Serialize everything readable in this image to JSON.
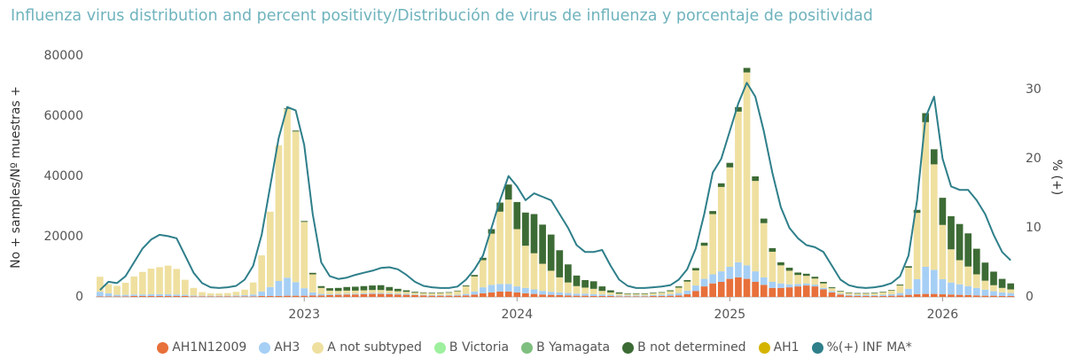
{
  "chart_data": {
    "type": "bar",
    "stacked": true,
    "title": "Influenza virus distribution and percent positivity/Distribución de virus de influenza y porcentaje de positividad",
    "y_label": "No + samples/Nº muestras +",
    "y2_label": "% (+)",
    "x": [
      2022.04,
      2022.08,
      2022.12,
      2022.16,
      2022.2,
      2022.24,
      2022.28,
      2022.32,
      2022.36,
      2022.4,
      2022.44,
      2022.48,
      2022.52,
      2022.56,
      2022.6,
      2022.64,
      2022.68,
      2022.72,
      2022.76,
      2022.8,
      2022.84,
      2022.88,
      2022.92,
      2022.96,
      2023.0,
      2023.04,
      2023.08,
      2023.12,
      2023.16,
      2023.2,
      2023.24,
      2023.28,
      2023.32,
      2023.36,
      2023.4,
      2023.44,
      2023.48,
      2023.52,
      2023.56,
      2023.6,
      2023.64,
      2023.68,
      2023.72,
      2023.76,
      2023.8,
      2023.84,
      2023.88,
      2023.92,
      2023.96,
      2024.0,
      2024.04,
      2024.08,
      2024.12,
      2024.16,
      2024.2,
      2024.24,
      2024.28,
      2024.32,
      2024.36,
      2024.4,
      2024.44,
      2024.48,
      2024.52,
      2024.56,
      2024.6,
      2024.64,
      2024.68,
      2024.72,
      2024.76,
      2024.8,
      2024.84,
      2024.88,
      2024.92,
      2024.96,
      2025.0,
      2025.04,
      2025.08,
      2025.12,
      2025.16,
      2025.2,
      2025.24,
      2025.28,
      2025.32,
      2025.36,
      2025.4,
      2025.44,
      2025.48,
      2025.52,
      2025.56,
      2025.6,
      2025.64,
      2025.68,
      2025.72,
      2025.76,
      2025.8,
      2025.84,
      2025.88,
      2025.92,
      2025.96,
      2026.0,
      2026.04,
      2026.08,
      2026.12,
      2026.16,
      2026.2,
      2026.24,
      2026.28,
      2026.32
    ],
    "xlim": [
      2022.02,
      2026.34
    ],
    "xticks": [
      2023,
      2024,
      2025,
      2026
    ],
    "ylim": [
      0,
      80000
    ],
    "yticks": [
      0,
      20000,
      40000,
      60000,
      80000
    ],
    "y2lim": [
      0,
      34.9
    ],
    "y2ticks": [
      0,
      10,
      20,
      30
    ],
    "grid": false,
    "legend": "bottom",
    "series": [
      {
        "name": "AH1N12009",
        "color": "#e8703a",
        "values": [
          200,
          200,
          200,
          200,
          300,
          300,
          300,
          300,
          300,
          300,
          300,
          200,
          200,
          200,
          200,
          200,
          200,
          200,
          200,
          300,
          300,
          300,
          400,
          400,
          400,
          500,
          500,
          600,
          700,
          800,
          800,
          900,
          1000,
          1000,
          900,
          800,
          700,
          600,
          500,
          400,
          400,
          400,
          400,
          500,
          800,
          1200,
          1500,
          1800,
          1800,
          1500,
          1200,
          1000,
          800,
          700,
          600,
          500,
          400,
          400,
          300,
          300,
          300,
          200,
          200,
          200,
          200,
          300,
          300,
          400,
          500,
          900,
          2000,
          3500,
          4500,
          5000,
          6000,
          6500,
          6000,
          5000,
          4000,
          3000,
          3000,
          3200,
          3500,
          3800,
          3500,
          2500,
          1500,
          800,
          400,
          300,
          300,
          300,
          300,
          400,
          500,
          700,
          900,
          1000,
          1000,
          900,
          800,
          700,
          600,
          500,
          400,
          400,
          300,
          300
        ]
      },
      {
        "name": "AH3",
        "color": "#a6cff5",
        "values": [
          1500,
          1000,
          500,
          500,
          500,
          500,
          600,
          600,
          600,
          500,
          400,
          300,
          200,
          200,
          200,
          200,
          300,
          400,
          600,
          1500,
          3000,
          5000,
          6000,
          4500,
          2500,
          1000,
          500,
          300,
          300,
          300,
          300,
          300,
          300,
          300,
          300,
          300,
          300,
          200,
          200,
          200,
          200,
          200,
          300,
          500,
          1000,
          2000,
          2500,
          2500,
          2500,
          2000,
          1800,
          1500,
          1200,
          1000,
          900,
          800,
          700,
          700,
          600,
          500,
          400,
          300,
          300,
          300,
          300,
          300,
          400,
          500,
          800,
          1200,
          1800,
          2500,
          3000,
          3500,
          4000,
          5000,
          4500,
          3500,
          2500,
          2000,
          1500,
          1000,
          800,
          700,
          600,
          500,
          400,
          300,
          300,
          300,
          300,
          300,
          400,
          500,
          800,
          2000,
          5000,
          9000,
          8000,
          5000,
          4000,
          3500,
          3000,
          2500,
          2000,
          1500,
          1200,
          1000
        ]
      },
      {
        "name": "A not subtyped",
        "color": "#efe0a0",
        "values": [
          5000,
          3000,
          3000,
          4000,
          6000,
          7500,
          8500,
          9000,
          9500,
          8500,
          5000,
          2500,
          1200,
          800,
          800,
          900,
          1200,
          1800,
          4000,
          12000,
          25000,
          45000,
          56000,
          50000,
          22000,
          6000,
          2000,
          1200,
          1000,
          1000,
          1000,
          1000,
          1000,
          1000,
          900,
          800,
          700,
          600,
          600,
          600,
          700,
          800,
          1200,
          2500,
          5000,
          9000,
          17000,
          24000,
          28000,
          19000,
          14000,
          12000,
          9000,
          7000,
          5000,
          3500,
          2500,
          2000,
          1800,
          1200,
          800,
          600,
          500,
          500,
          500,
          600,
          700,
          1000,
          1800,
          3000,
          5000,
          11000,
          20000,
          28000,
          33000,
          50000,
          64000,
          30000,
          18000,
          10000,
          6000,
          4500,
          3000,
          2500,
          2000,
          1500,
          1000,
          700,
          600,
          500,
          500,
          600,
          800,
          1200,
          2500,
          7000,
          22000,
          48000,
          35000,
          18000,
          11000,
          8000,
          6500,
          4500,
          3000,
          2000,
          1500,
          1200
        ]
      },
      {
        "name": "B Victoria",
        "color": "#9ef09e",
        "values": [
          0,
          0,
          0,
          0,
          0,
          0,
          0,
          0,
          0,
          0,
          0,
          0,
          0,
          0,
          0,
          0,
          0,
          0,
          0,
          0,
          0,
          0,
          0,
          0,
          0,
          0,
          0,
          0,
          0,
          0,
          0,
          0,
          0,
          0,
          0,
          0,
          0,
          0,
          0,
          0,
          0,
          0,
          0,
          0,
          0,
          0,
          0,
          0,
          0,
          0,
          0,
          0,
          0,
          0,
          0,
          0,
          0,
          0,
          0,
          0,
          0,
          0,
          0,
          0,
          0,
          0,
          0,
          0,
          0,
          0,
          0,
          0,
          0,
          0,
          0,
          0,
          0,
          0,
          0,
          0,
          0,
          0,
          0,
          0,
          0,
          0,
          0,
          0,
          0,
          0,
          0,
          0,
          0,
          0,
          0,
          0,
          0,
          0,
          0,
          0,
          0,
          0,
          0,
          0,
          0,
          0,
          0,
          0
        ]
      },
      {
        "name": "B Yamagata",
        "color": "#7fbf7f",
        "values": [
          0,
          0,
          0,
          0,
          0,
          0,
          0,
          0,
          0,
          0,
          0,
          0,
          0,
          0,
          0,
          0,
          0,
          0,
          0,
          0,
          0,
          0,
          0,
          0,
          0,
          0,
          0,
          0,
          0,
          0,
          0,
          0,
          0,
          0,
          0,
          0,
          0,
          0,
          0,
          0,
          0,
          0,
          0,
          0,
          0,
          0,
          0,
          0,
          0,
          0,
          0,
          0,
          0,
          0,
          0,
          0,
          0,
          0,
          0,
          0,
          0,
          0,
          0,
          0,
          0,
          0,
          0,
          0,
          0,
          0,
          0,
          0,
          0,
          0,
          0,
          0,
          0,
          0,
          0,
          0,
          0,
          0,
          0,
          0,
          0,
          0,
          0,
          0,
          0,
          0,
          0,
          0,
          0,
          0,
          0,
          0,
          0,
          0,
          0,
          0,
          0,
          0,
          0,
          0,
          0,
          0,
          0,
          0
        ]
      },
      {
        "name": "B not determined",
        "color": "#3d6b35",
        "values": [
          0,
          0,
          0,
          0,
          0,
          0,
          0,
          0,
          0,
          0,
          0,
          0,
          0,
          0,
          0,
          0,
          0,
          0,
          0,
          0,
          0,
          0,
          200,
          300,
          300,
          500,
          600,
          800,
          1000,
          1200,
          1300,
          1400,
          1500,
          1600,
          1200,
          800,
          500,
          300,
          200,
          200,
          200,
          200,
          200,
          300,
          500,
          800,
          1500,
          3000,
          5000,
          9000,
          11000,
          13000,
          13000,
          12000,
          9000,
          6000,
          3500,
          2500,
          2500,
          1500,
          700,
          400,
          200,
          200,
          200,
          200,
          200,
          300,
          400,
          500,
          800,
          1000,
          1000,
          1200,
          1500,
          1500,
          1500,
          1500,
          1500,
          1200,
          1000,
          1000,
          800,
          700,
          600,
          500,
          300,
          200,
          200,
          200,
          200,
          200,
          200,
          200,
          300,
          500,
          1000,
          3000,
          5000,
          9000,
          11000,
          12000,
          11000,
          8500,
          6000,
          4500,
          3000,
          2000
        ]
      },
      {
        "name": "AH1",
        "color": "#d4b400",
        "values": [
          0,
          0,
          0,
          0,
          0,
          0,
          0,
          0,
          0,
          0,
          0,
          0,
          0,
          0,
          0,
          0,
          0,
          0,
          0,
          0,
          0,
          0,
          0,
          0,
          0,
          0,
          0,
          0,
          0,
          0,
          0,
          0,
          0,
          0,
          0,
          0,
          0,
          0,
          0,
          0,
          0,
          0,
          0,
          0,
          0,
          0,
          0,
          0,
          0,
          0,
          0,
          0,
          0,
          0,
          0,
          0,
          0,
          0,
          0,
          0,
          0,
          0,
          0,
          0,
          0,
          0,
          0,
          0,
          0,
          0,
          0,
          0,
          0,
          0,
          0,
          0,
          0,
          0,
          0,
          0,
          0,
          0,
          0,
          0,
          0,
          0,
          0,
          0,
          0,
          0,
          0,
          0,
          0,
          0,
          0,
          0,
          0,
          0,
          0,
          0,
          0,
          0,
          0,
          0,
          0,
          0,
          0,
          0
        ]
      },
      {
        "name": "%(+) INF MA*",
        "color": "#2e7f8a",
        "type": "line",
        "axis": "y2",
        "values": [
          1,
          2.2,
          2.0,
          3.0,
          5.0,
          7.0,
          8.3,
          9.0,
          8.8,
          8.5,
          6.0,
          3.5,
          2.0,
          1.4,
          1.3,
          1.4,
          1.6,
          2.5,
          4.5,
          9,
          16,
          23,
          27.5,
          27,
          22,
          12,
          5,
          3,
          2.6,
          2.8,
          3.2,
          3.5,
          3.8,
          4.2,
          4.3,
          4.0,
          3.2,
          2.2,
          1.6,
          1.4,
          1.3,
          1.3,
          1.5,
          2.5,
          4,
          6,
          10,
          14,
          17.5,
          16,
          14,
          15,
          14.5,
          14,
          12,
          10,
          7.5,
          6.5,
          6.5,
          6.8,
          4.5,
          2.5,
          1.6,
          1.3,
          1.3,
          1.4,
          1.5,
          1.7,
          2.5,
          4,
          7,
          12,
          18,
          20,
          24,
          28,
          31,
          29,
          24,
          18,
          13,
          10,
          8.5,
          7.5,
          7.2,
          6.5,
          4.5,
          2.5,
          1.7,
          1.4,
          1.3,
          1.4,
          1.6,
          2.0,
          3.0,
          6,
          14,
          26,
          29,
          20,
          16,
          15.5,
          15.5,
          14,
          12,
          9,
          6.5,
          5.3
        ]
      }
    ]
  }
}
